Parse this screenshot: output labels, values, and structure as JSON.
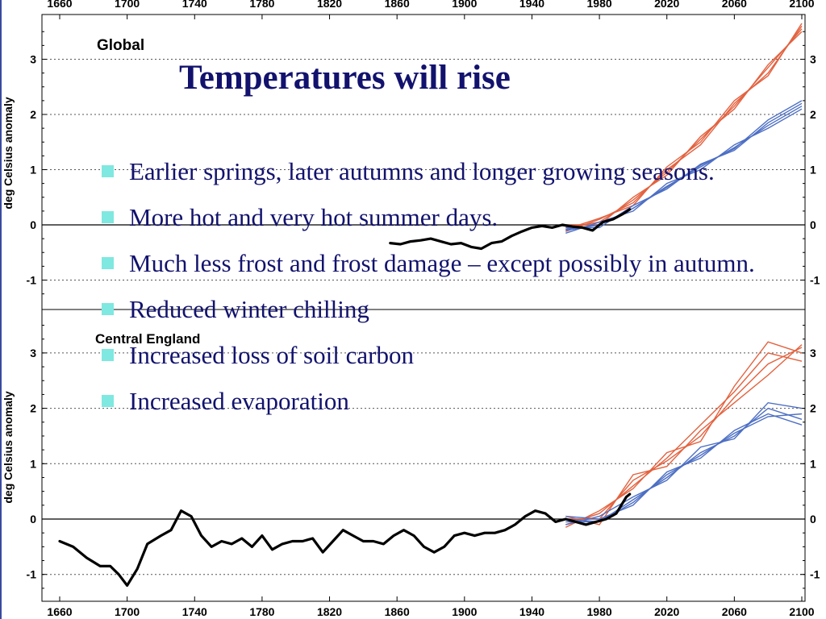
{
  "slide": {
    "title": "Temperatures will rise",
    "bullets": [
      "Earlier springs, later autumns and longer growing seasons.",
      "More hot and very hot summer days.",
      "Much less frost and frost damage – except possibly in autumn.",
      "Reduced winter chilling",
      "Increased loss of soil carbon",
      "Increased evaporation"
    ]
  },
  "chart_data": [
    {
      "type": "line",
      "title": "Global",
      "ylabel": "deg Celsius anomaly",
      "xlim": [
        1655,
        2100
      ],
      "ylim": [
        -1.5,
        3.8
      ],
      "xticks": [
        1660,
        1700,
        1740,
        1780,
        1820,
        1860,
        1900,
        1940,
        1980,
        2020,
        2060,
        2100
      ],
      "yticks": [
        -1,
        0,
        1,
        2,
        3
      ],
      "grid": true,
      "colors": {
        "observed": "#000000",
        "high": "#e3623f",
        "low": "#4d6fc4"
      },
      "observed": {
        "x": [
          1856,
          1862,
          1868,
          1874,
          1880,
          1886,
          1892,
          1898,
          1904,
          1910,
          1916,
          1922,
          1928,
          1934,
          1940,
          1946,
          1952,
          1958,
          1964,
          1970,
          1976,
          1982,
          1988,
          1994,
          1998
        ],
        "y": [
          -0.33,
          -0.35,
          -0.3,
          -0.28,
          -0.25,
          -0.3,
          -0.35,
          -0.33,
          -0.4,
          -0.43,
          -0.33,
          -0.3,
          -0.2,
          -0.12,
          -0.05,
          -0.02,
          -0.05,
          0.0,
          -0.03,
          -0.05,
          -0.1,
          0.05,
          0.1,
          0.2,
          0.28
        ]
      },
      "series": [
        {
          "group": "high",
          "x": [
            1960,
            1980,
            2000,
            2020,
            2040,
            2060,
            2080,
            2100
          ],
          "y": [
            -0.05,
            0.05,
            0.45,
            0.95,
            1.55,
            2.15,
            2.85,
            3.55
          ]
        },
        {
          "group": "high",
          "x": [
            1960,
            1980,
            2000,
            2020,
            2040,
            2060,
            2080,
            2100
          ],
          "y": [
            -0.12,
            0.1,
            0.4,
            1.0,
            1.45,
            2.2,
            2.75,
            3.6
          ]
        },
        {
          "group": "high",
          "x": [
            1960,
            1980,
            2000,
            2020,
            2040,
            2060,
            2080,
            2100
          ],
          "y": [
            0.0,
            0.0,
            0.5,
            0.9,
            1.6,
            2.1,
            2.9,
            3.5
          ]
        },
        {
          "group": "high",
          "x": [
            1960,
            1980,
            2000,
            2020,
            2040,
            2060,
            2080,
            2100
          ],
          "y": [
            -0.08,
            0.12,
            0.35,
            1.05,
            1.5,
            2.25,
            2.7,
            3.65
          ]
        },
        {
          "group": "low",
          "x": [
            1960,
            1980,
            2000,
            2020,
            2040,
            2060,
            2080,
            2100
          ],
          "y": [
            -0.1,
            0.0,
            0.3,
            0.7,
            1.05,
            1.4,
            1.8,
            2.15
          ]
        },
        {
          "group": "low",
          "x": [
            1960,
            1980,
            2000,
            2020,
            2040,
            2060,
            2080,
            2100
          ],
          "y": [
            -0.05,
            -0.05,
            0.35,
            0.65,
            1.1,
            1.35,
            1.85,
            2.2
          ]
        },
        {
          "group": "low",
          "x": [
            1960,
            1980,
            2000,
            2020,
            2040,
            2060,
            2080,
            2100
          ],
          "y": [
            -0.15,
            0.05,
            0.25,
            0.75,
            1.0,
            1.45,
            1.75,
            2.1
          ]
        },
        {
          "group": "low",
          "x": [
            1960,
            1980,
            2000,
            2020,
            2040,
            2060,
            2080,
            2100
          ],
          "y": [
            -0.08,
            0.0,
            0.3,
            0.68,
            1.08,
            1.38,
            1.9,
            2.25
          ]
        }
      ]
    },
    {
      "type": "line",
      "title": "Central England",
      "ylabel": "deg Celsius anomaly",
      "xlim": [
        1655,
        2100
      ],
      "ylim": [
        -1.5,
        3.8
      ],
      "xticks": [
        1660,
        1700,
        1740,
        1780,
        1820,
        1860,
        1900,
        1940,
        1980,
        2020,
        2060,
        2100
      ],
      "yticks": [
        -1,
        0,
        1,
        2,
        3
      ],
      "grid": true,
      "colors": {
        "observed": "#000000",
        "high": "#e3623f",
        "low": "#4d6fc4"
      },
      "observed": {
        "x": [
          1660,
          1668,
          1676,
          1684,
          1690,
          1695,
          1700,
          1706,
          1712,
          1720,
          1726,
          1732,
          1738,
          1744,
          1750,
          1756,
          1762,
          1768,
          1774,
          1780,
          1786,
          1792,
          1798,
          1804,
          1810,
          1816,
          1822,
          1828,
          1834,
          1840,
          1846,
          1852,
          1858,
          1864,
          1870,
          1876,
          1882,
          1888,
          1894,
          1900,
          1906,
          1912,
          1918,
          1924,
          1930,
          1936,
          1942,
          1948,
          1954,
          1960,
          1966,
          1972,
          1978,
          1984,
          1990,
          1996,
          1998
        ],
        "y": [
          -0.4,
          -0.5,
          -0.7,
          -0.85,
          -0.85,
          -1.0,
          -1.2,
          -0.9,
          -0.45,
          -0.3,
          -0.2,
          0.15,
          0.05,
          -0.3,
          -0.5,
          -0.4,
          -0.45,
          -0.35,
          -0.5,
          -0.3,
          -0.55,
          -0.45,
          -0.4,
          -0.4,
          -0.35,
          -0.6,
          -0.4,
          -0.2,
          -0.3,
          -0.4,
          -0.4,
          -0.45,
          -0.3,
          -0.2,
          -0.3,
          -0.5,
          -0.6,
          -0.5,
          -0.3,
          -0.25,
          -0.3,
          -0.25,
          -0.25,
          -0.2,
          -0.1,
          0.05,
          0.15,
          0.1,
          -0.05,
          0.0,
          -0.05,
          -0.1,
          -0.05,
          0.0,
          0.1,
          0.4,
          0.45
        ]
      },
      "series": [
        {
          "group": "high",
          "x": [
            1960,
            1980,
            2000,
            2020,
            2040,
            2060,
            2080,
            2100
          ],
          "y": [
            0.0,
            0.0,
            0.7,
            1.05,
            1.5,
            2.2,
            2.8,
            3.1
          ]
        },
        {
          "group": "high",
          "x": [
            1960,
            1980,
            2000,
            2020,
            2040,
            2060,
            2080,
            2100
          ],
          "y": [
            -0.15,
            0.15,
            0.55,
            1.2,
            1.4,
            2.4,
            3.2,
            3.0
          ]
        },
        {
          "group": "high",
          "x": [
            1960,
            1980,
            2000,
            2020,
            2040,
            2060,
            2080,
            2100
          ],
          "y": [
            0.05,
            -0.1,
            0.8,
            0.95,
            1.6,
            2.1,
            2.6,
            3.15
          ]
        },
        {
          "group": "high",
          "x": [
            1960,
            1980,
            2000,
            2020,
            2040,
            2060,
            2080,
            2100
          ],
          "y": [
            -0.1,
            0.1,
            0.6,
            1.1,
            1.7,
            2.3,
            3.0,
            2.85
          ]
        },
        {
          "group": "low",
          "x": [
            1960,
            1980,
            2000,
            2020,
            2040,
            2060,
            2080,
            2100
          ],
          "y": [
            -0.05,
            -0.05,
            0.35,
            0.75,
            1.2,
            1.5,
            2.0,
            1.8
          ]
        },
        {
          "group": "low",
          "x": [
            1960,
            1980,
            2000,
            2020,
            2040,
            2060,
            2080,
            2100
          ],
          "y": [
            0.05,
            0.0,
            0.25,
            0.85,
            1.1,
            1.6,
            1.9,
            1.7
          ]
        },
        {
          "group": "low",
          "x": [
            1960,
            1980,
            2000,
            2020,
            2040,
            2060,
            2080,
            2100
          ],
          "y": [
            -0.1,
            0.05,
            0.4,
            0.7,
            1.3,
            1.45,
            2.1,
            2.0
          ]
        },
        {
          "group": "low",
          "x": [
            1960,
            1980,
            2000,
            2020,
            2040,
            2060,
            2080,
            2100
          ],
          "y": [
            0.0,
            -0.05,
            0.3,
            0.8,
            1.15,
            1.55,
            1.85,
            1.9
          ]
        }
      ]
    }
  ]
}
